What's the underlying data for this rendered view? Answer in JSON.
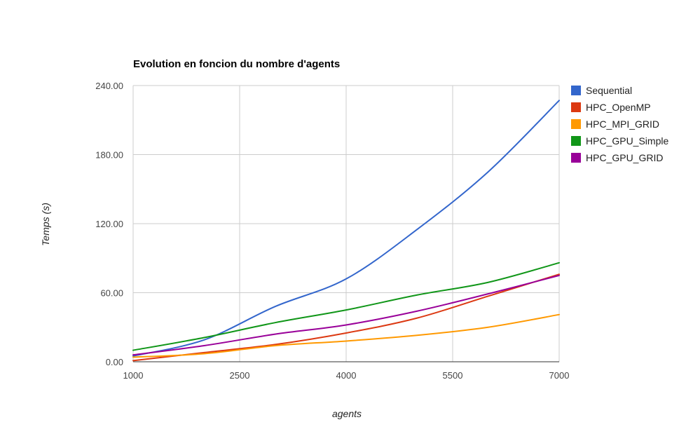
{
  "chart_data": {
    "type": "line",
    "title": "Evolution en foncion du nombre d'agents",
    "xlabel": "agents",
    "ylabel": "Temps (s)",
    "x": [
      1000,
      2000,
      3000,
      4000,
      5000,
      6000,
      7000
    ],
    "xticks": [
      "1000",
      "2500",
      "4000",
      "5500",
      "7000"
    ],
    "xtick_values": [
      1000,
      2500,
      4000,
      5500,
      7000
    ],
    "yticks": [
      "0.00",
      "60.00",
      "120.00",
      "180.00",
      "240.00"
    ],
    "ytick_values": [
      0,
      60,
      120,
      180,
      240
    ],
    "xlim": [
      1000,
      7000
    ],
    "ylim": [
      0,
      240
    ],
    "grid": true,
    "legend_position": "right",
    "series": [
      {
        "name": "Sequential",
        "color": "#3366cc",
        "values": [
          5,
          19,
          48,
          72,
          115,
          165,
          227
        ]
      },
      {
        "name": "HPC_OpenMP",
        "color": "#dc3912",
        "values": [
          1,
          8,
          15,
          25,
          38,
          57,
          76
        ]
      },
      {
        "name": "HPC_MPI_GRID",
        "color": "#ff9900",
        "values": [
          4,
          7,
          14,
          18,
          23,
          30,
          41
        ]
      },
      {
        "name": "HPC_GPU_Simple",
        "color": "#109618",
        "values": [
          10,
          21,
          34,
          45,
          58,
          69,
          86
        ]
      },
      {
        "name": "HPC_GPU_GRID",
        "color": "#990099",
        "values": [
          6,
          14,
          24,
          32,
          44,
          59,
          75
        ]
      }
    ]
  }
}
